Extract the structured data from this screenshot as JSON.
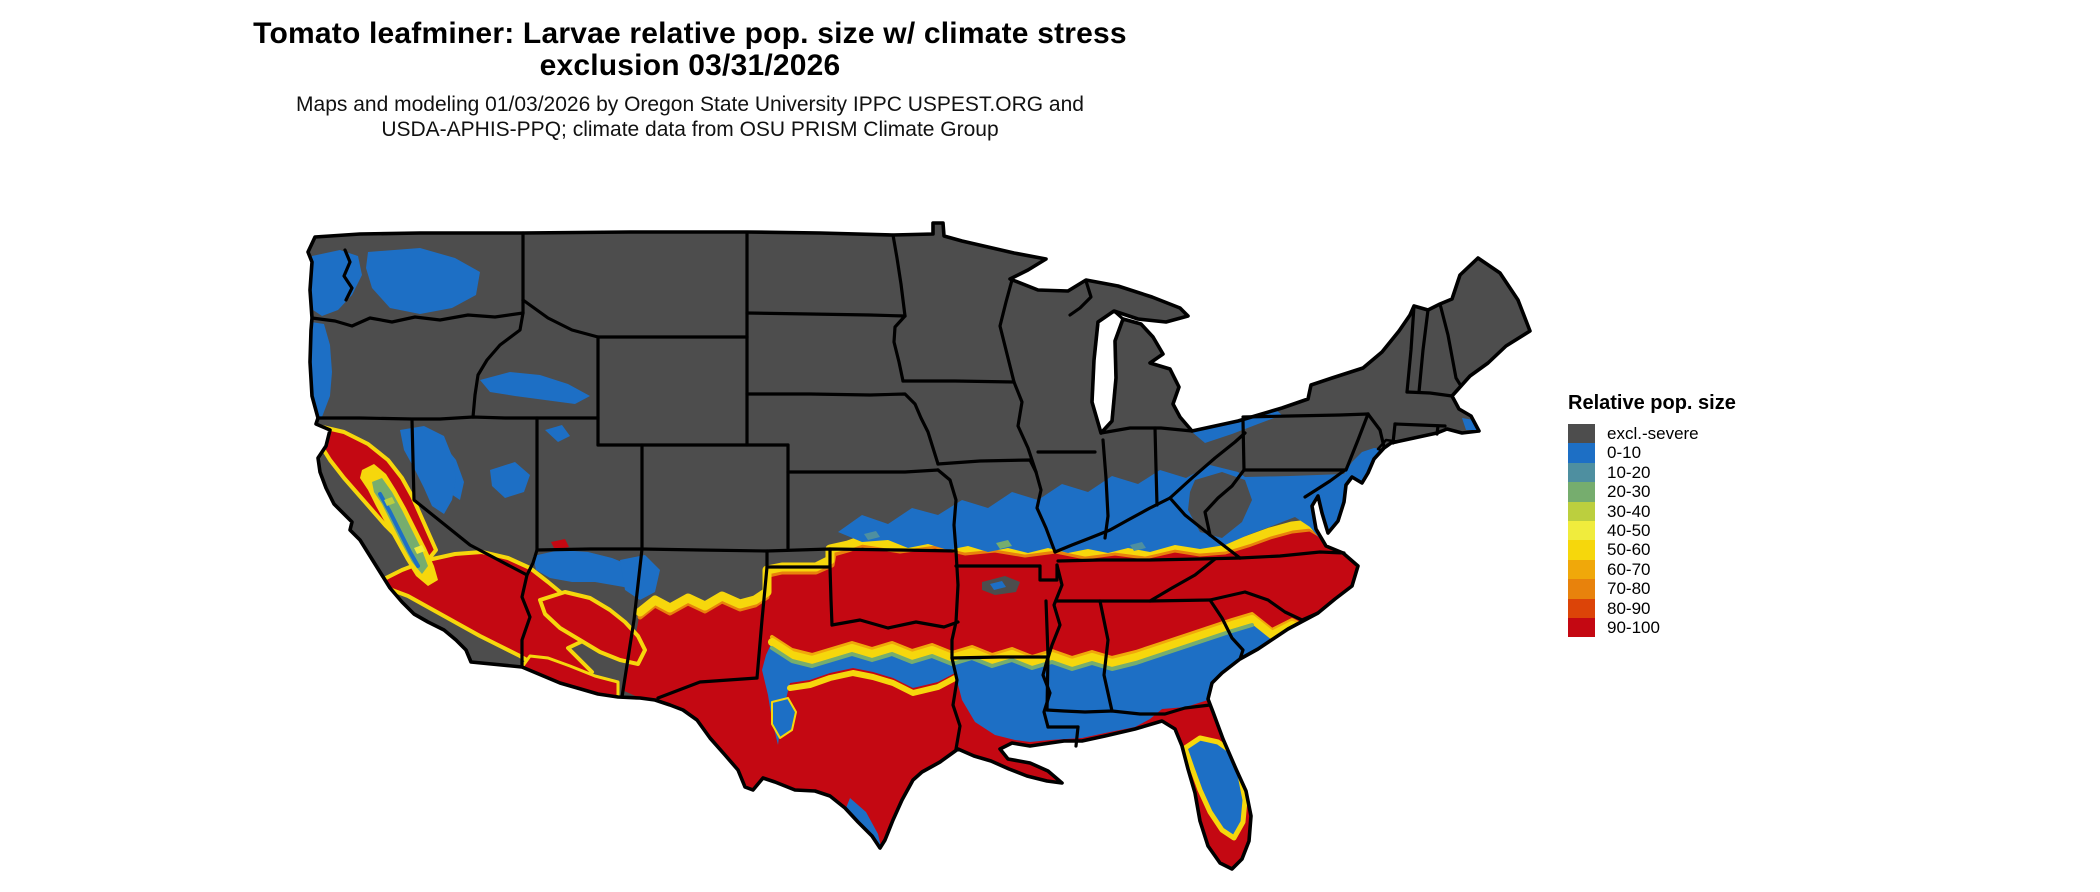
{
  "title": {
    "line1": "Tomato leafminer: Larvae relative pop. size w/ climate stress",
    "line2": "exclusion 03/31/2026"
  },
  "subtitle": {
    "line1": "Maps and modeling 01/03/2026 by Oregon State University IPPC USPEST.ORG and",
    "line2": "USDA-APHIS-PPQ; climate data from OSU PRISM Climate Group"
  },
  "legend": {
    "title": "Relative pop. size",
    "items": [
      {
        "label": "excl.-severe",
        "color": "#4D4D4D"
      },
      {
        "label": "0-10",
        "color": "#1D6FC5"
      },
      {
        "label": "10-20",
        "color": "#4E8FA0"
      },
      {
        "label": "20-30",
        "color": "#76AD6E"
      },
      {
        "label": "30-40",
        "color": "#BCCF3E"
      },
      {
        "label": "40-50",
        "color": "#F0EC3D"
      },
      {
        "label": "50-60",
        "color": "#F6D70C"
      },
      {
        "label": "60-70",
        "color": "#F0A80A"
      },
      {
        "label": "70-80",
        "color": "#E8820C"
      },
      {
        "label": "80-90",
        "color": "#DC4408"
      },
      {
        "label": "90-100",
        "color": "#C40812"
      }
    ]
  },
  "map": {
    "region": "Contiguous United States",
    "kind": "raster choropleth of relative population size",
    "background_color": "#FFFFFF",
    "excluded_land_color": "#4D4D4D",
    "state_border_color": "#000000"
  }
}
